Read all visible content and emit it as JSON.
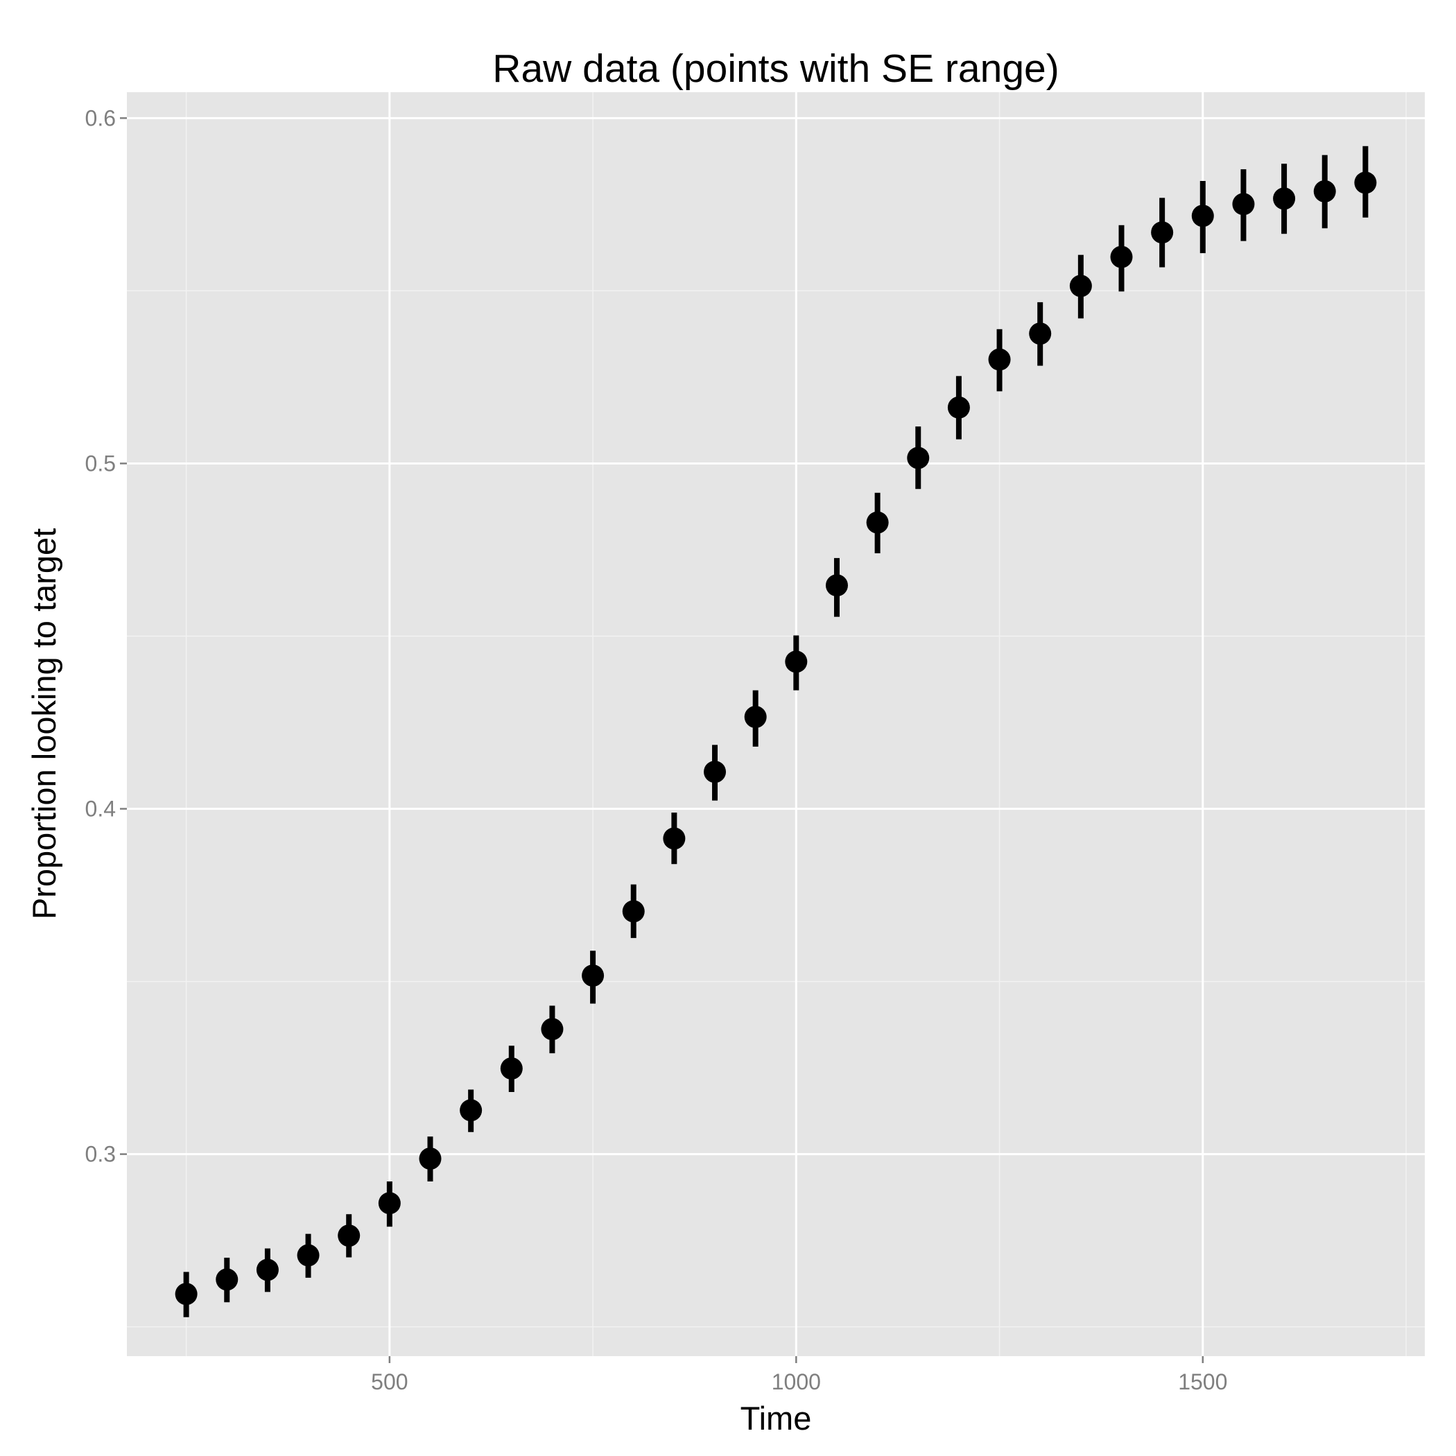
{
  "chart_data": {
    "type": "scatter",
    "title": "Raw data (points with SE range)",
    "xlabel": "Time",
    "ylabel": "Proportion looking to target",
    "xlim": [
      177,
      1773
    ],
    "ylim": [
      0.2415,
      0.6075
    ],
    "x_ticks": [
      500,
      1000,
      1500
    ],
    "x_tick_labels": [
      "500",
      "1000",
      "1500"
    ],
    "x_minor_ticks": [
      250,
      750,
      1250,
      1750
    ],
    "y_ticks": [
      0.3,
      0.4,
      0.5,
      0.6
    ],
    "y_tick_labels": [
      "0.3",
      "0.4",
      "0.5",
      "0.6"
    ],
    "y_minor_ticks": [
      0.25,
      0.35,
      0.45,
      0.55
    ],
    "grid": true,
    "legend": "none",
    "colors": {
      "panel": "#e5e5e5",
      "grid": "#ffffff",
      "points": "#000000",
      "tick_labels": "#7f7f7f"
    },
    "series": [
      {
        "x": [
          250,
          300,
          350,
          400,
          450,
          500,
          550,
          600,
          650,
          700,
          750,
          800,
          850,
          900,
          950,
          1000,
          1050,
          1100,
          1150,
          1200,
          1250,
          1300,
          1350,
          1400,
          1450,
          1500,
          1550,
          1600,
          1650,
          1700
        ],
        "y": [
          0.2595,
          0.2637,
          0.2665,
          0.2707,
          0.2764,
          0.2858,
          0.2987,
          0.3127,
          0.3248,
          0.3362,
          0.3517,
          0.3703,
          0.3914,
          0.4107,
          0.4266,
          0.4426,
          0.4647,
          0.4829,
          0.5016,
          0.5162,
          0.5301,
          0.5376,
          0.5514,
          0.5598,
          0.5669,
          0.5717,
          0.5751,
          0.5767,
          0.5788,
          0.5813
        ],
        "se_low": [
          0.2528,
          0.2571,
          0.2601,
          0.2642,
          0.2701,
          0.279,
          0.2921,
          0.3064,
          0.318,
          0.3292,
          0.3436,
          0.3626,
          0.384,
          0.4024,
          0.418,
          0.4343,
          0.4556,
          0.474,
          0.4926,
          0.507,
          0.5209,
          0.5283,
          0.542,
          0.5498,
          0.5568,
          0.5609,
          0.5644,
          0.5665,
          0.5681,
          0.5712
        ],
        "se_high": [
          0.2659,
          0.27,
          0.2727,
          0.2769,
          0.2826,
          0.2921,
          0.3051,
          0.3187,
          0.3314,
          0.343,
          0.3589,
          0.3781,
          0.3989,
          0.4185,
          0.4343,
          0.4502,
          0.4726,
          0.4915,
          0.5107,
          0.5253,
          0.5389,
          0.5467,
          0.5604,
          0.569,
          0.5769,
          0.5818,
          0.5852,
          0.5868,
          0.5893,
          0.5919
        ]
      }
    ]
  }
}
